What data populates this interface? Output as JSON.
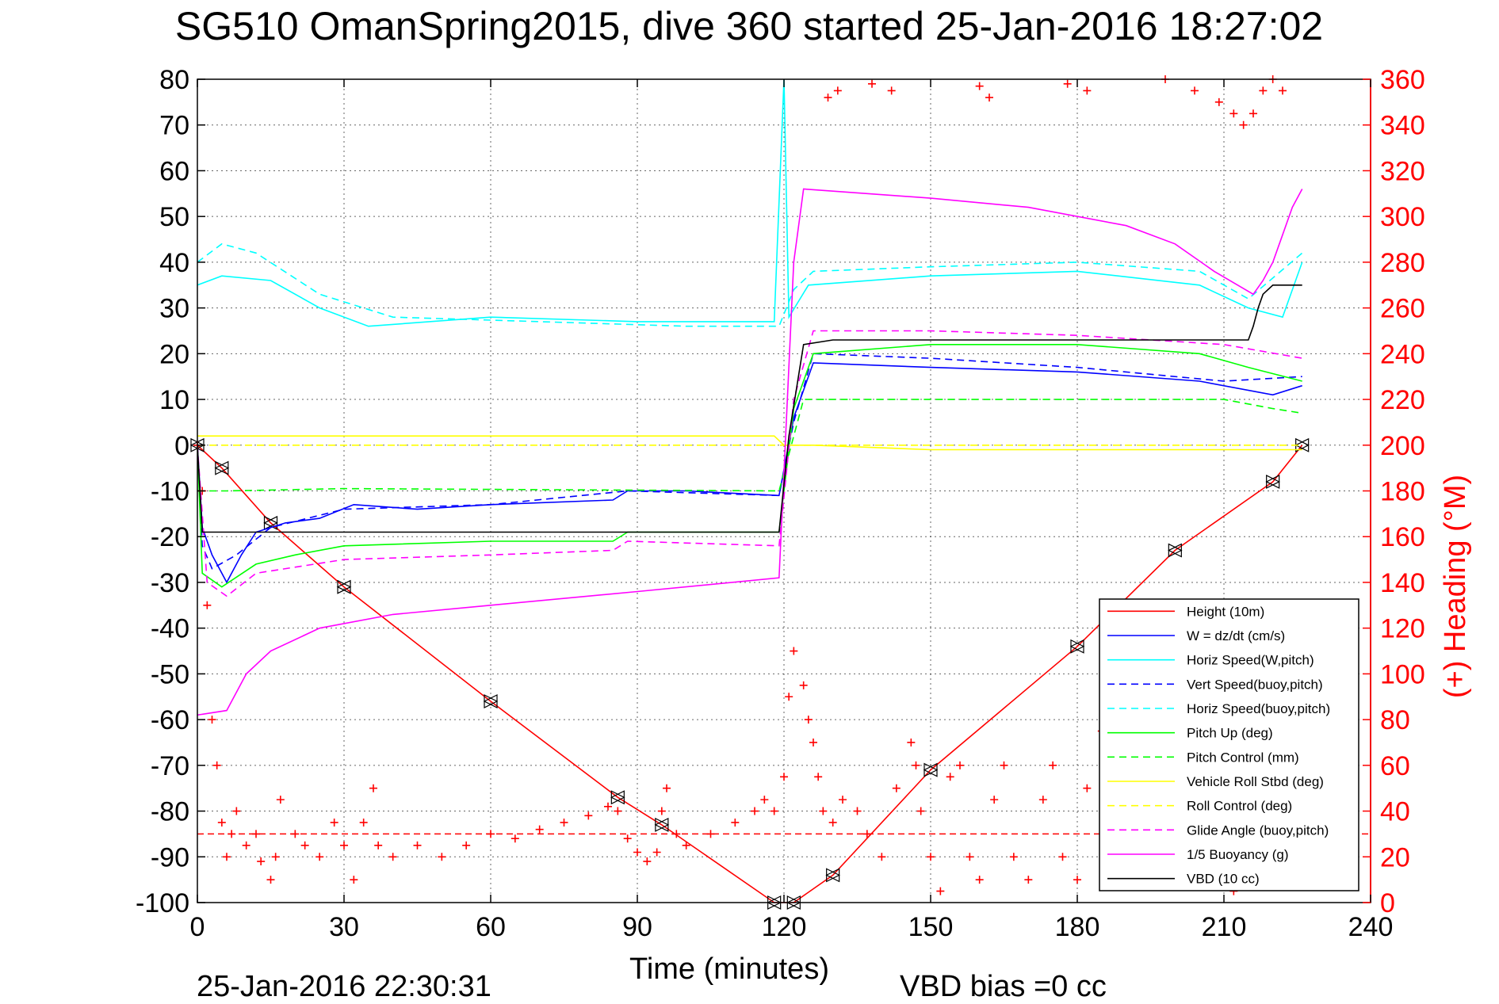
{
  "figure": {
    "title": "SG510 OmanSpring2015, dive 360 started 25-Jan-2016 18:27:02",
    "footer_timestamp": "25-Jan-2016 22:30:31",
    "footer_vbd": "VBD bias =0 cc"
  },
  "chart_data": {
    "type": "line",
    "title": "SG510 OmanSpring2015, dive 360 started 25-Jan-2016 18:27:02",
    "xlabel": "Time (minutes)",
    "ylabel": "",
    "y2label": "(+) Heading (°M)",
    "xlim": [
      0,
      240
    ],
    "ylim": [
      -100,
      80
    ],
    "y2lim": [
      0,
      360
    ],
    "xticks": [
      0,
      30,
      60,
      90,
      120,
      150,
      180,
      210,
      240
    ],
    "yticks": [
      -100,
      -90,
      -80,
      -70,
      -60,
      -50,
      -40,
      -30,
      -20,
      -10,
      0,
      10,
      20,
      30,
      40,
      50,
      60,
      70,
      80
    ],
    "y2ticks": [
      0,
      20,
      40,
      60,
      80,
      100,
      120,
      140,
      160,
      180,
      200,
      220,
      240,
      260,
      280,
      300,
      320,
      340,
      360
    ],
    "grid": true,
    "legend_position": "bottom-right",
    "colors": {
      "red": "#ff0000",
      "blue": "#0000ff",
      "cyan": "#00ffff",
      "green": "#00ff00",
      "yellow": "#ffff00",
      "magenta": "#ff00ff",
      "black": "#000000"
    },
    "series": [
      {
        "name": "Height (10m)",
        "color": "#ff0000",
        "style": "solid",
        "marker": "triangle",
        "points": [
          [
            0,
            0
          ],
          [
            5,
            -5
          ],
          [
            15,
            -17
          ],
          [
            30,
            -31
          ],
          [
            60,
            -56
          ],
          [
            86,
            -77
          ],
          [
            95,
            -83
          ],
          [
            118,
            -100
          ],
          [
            122,
            -100
          ],
          [
            130,
            -94
          ],
          [
            150,
            -71
          ],
          [
            180,
            -44
          ],
          [
            200,
            -23
          ],
          [
            220,
            -8
          ],
          [
            226,
            0
          ]
        ]
      },
      {
        "name": "W = dz/dt (cm/s)",
        "color": "#0000ff",
        "style": "solid",
        "points": [
          [
            0,
            0
          ],
          [
            1,
            -18
          ],
          [
            3,
            -24
          ],
          [
            6,
            -30
          ],
          [
            9,
            -24
          ],
          [
            12,
            -19
          ],
          [
            18,
            -17
          ],
          [
            25,
            -16
          ],
          [
            32,
            -13
          ],
          [
            45,
            -14
          ],
          [
            60,
            -13
          ],
          [
            85,
            -12
          ],
          [
            88,
            -10
          ],
          [
            100,
            -10
          ],
          [
            119,
            -11
          ],
          [
            122,
            6
          ],
          [
            126,
            18
          ],
          [
            150,
            17
          ],
          [
            180,
            16
          ],
          [
            205,
            14
          ],
          [
            220,
            11
          ],
          [
            226,
            13
          ]
        ]
      },
      {
        "name": "Horiz Speed(W,pitch)",
        "color": "#00ffff",
        "style": "solid",
        "points": [
          [
            0,
            35
          ],
          [
            5,
            37
          ],
          [
            15,
            36
          ],
          [
            25,
            30
          ],
          [
            35,
            26
          ],
          [
            60,
            28
          ],
          [
            90,
            27
          ],
          [
            118,
            27
          ],
          [
            120,
            80
          ],
          [
            121,
            28
          ],
          [
            125,
            35
          ],
          [
            150,
            37
          ],
          [
            180,
            38
          ],
          [
            205,
            35
          ],
          [
            215,
            30
          ],
          [
            222,
            28
          ],
          [
            226,
            40
          ]
        ]
      },
      {
        "name": "Vert Speed(buoy,pitch)",
        "color": "#0000ff",
        "style": "dashed",
        "points": [
          [
            0,
            0
          ],
          [
            1,
            -22
          ],
          [
            3,
            -27
          ],
          [
            8,
            -24
          ],
          [
            15,
            -18
          ],
          [
            30,
            -14
          ],
          [
            60,
            -13
          ],
          [
            88,
            -10
          ],
          [
            119,
            -11
          ],
          [
            122,
            5
          ],
          [
            126,
            20
          ],
          [
            150,
            19
          ],
          [
            180,
            17
          ],
          [
            210,
            14
          ],
          [
            226,
            15
          ]
        ]
      },
      {
        "name": "Horiz Speed(buoy,pitch)",
        "color": "#00ffff",
        "style": "dashed",
        "points": [
          [
            0,
            40
          ],
          [
            5,
            44
          ],
          [
            12,
            42
          ],
          [
            25,
            33
          ],
          [
            40,
            28
          ],
          [
            70,
            27
          ],
          [
            100,
            26
          ],
          [
            119,
            26
          ],
          [
            122,
            34
          ],
          [
            126,
            38
          ],
          [
            150,
            39
          ],
          [
            180,
            40
          ],
          [
            205,
            38
          ],
          [
            215,
            32
          ],
          [
            226,
            42
          ]
        ]
      },
      {
        "name": "Pitch Up (deg)",
        "color": "#00ff00",
        "style": "solid",
        "points": [
          [
            0,
            0
          ],
          [
            1,
            -28
          ],
          [
            5,
            -31
          ],
          [
            12,
            -26
          ],
          [
            20,
            -24
          ],
          [
            30,
            -22
          ],
          [
            60,
            -21
          ],
          [
            85,
            -21
          ],
          [
            88,
            -19
          ],
          [
            119,
            -19
          ],
          [
            122,
            8
          ],
          [
            126,
            20
          ],
          [
            150,
            22
          ],
          [
            180,
            22
          ],
          [
            205,
            20
          ],
          [
            215,
            17
          ],
          [
            226,
            14
          ]
        ]
      },
      {
        "name": "Pitch Control (mm)",
        "color": "#00ff00",
        "style": "dashed",
        "points": [
          [
            0,
            -10
          ],
          [
            6,
            -10
          ],
          [
            30,
            -9.5
          ],
          [
            119,
            -10
          ],
          [
            124,
            10
          ],
          [
            150,
            10
          ],
          [
            180,
            10
          ],
          [
            210,
            10
          ],
          [
            215,
            9
          ],
          [
            220,
            8
          ],
          [
            226,
            7
          ]
        ]
      },
      {
        "name": "Vehicle Roll Stbd (deg)",
        "color": "#ffff00",
        "style": "solid",
        "points": [
          [
            0,
            2
          ],
          [
            30,
            2
          ],
          [
            60,
            2
          ],
          [
            90,
            2
          ],
          [
            118,
            2
          ],
          [
            120,
            0
          ],
          [
            126,
            0
          ],
          [
            150,
            -1
          ],
          [
            180,
            -1
          ],
          [
            210,
            -1
          ],
          [
            226,
            -1
          ]
        ]
      },
      {
        "name": "Roll Control (deg)",
        "color": "#ffff00",
        "style": "dashed",
        "points": [
          [
            0,
            0
          ],
          [
            30,
            0
          ],
          [
            60,
            0
          ],
          [
            90,
            0
          ],
          [
            118,
            0
          ],
          [
            122,
            0
          ],
          [
            150,
            0
          ],
          [
            180,
            0
          ],
          [
            210,
            0
          ],
          [
            226,
            0
          ]
        ]
      },
      {
        "name": "Glide Angle (buoy,pitch)",
        "color": "#ff00ff",
        "style": "dashed",
        "points": [
          [
            0,
            0
          ],
          [
            2,
            -30
          ],
          [
            6,
            -33
          ],
          [
            12,
            -28
          ],
          [
            30,
            -25
          ],
          [
            60,
            -24
          ],
          [
            85,
            -23
          ],
          [
            88,
            -21
          ],
          [
            119,
            -22
          ],
          [
            122,
            10
          ],
          [
            126,
            25
          ],
          [
            150,
            25
          ],
          [
            180,
            24
          ],
          [
            210,
            22
          ],
          [
            226,
            19
          ]
        ]
      },
      {
        "name": "1/5 Buoyancy (g)",
        "color": "#ff00ff",
        "style": "solid",
        "points": [
          [
            0,
            -59
          ],
          [
            6,
            -58
          ],
          [
            10,
            -50
          ],
          [
            15,
            -45
          ],
          [
            25,
            -40
          ],
          [
            40,
            -37
          ],
          [
            60,
            -35
          ],
          [
            90,
            -32
          ],
          [
            119,
            -29
          ],
          [
            122,
            40
          ],
          [
            124,
            56
          ],
          [
            150,
            54
          ],
          [
            170,
            52
          ],
          [
            190,
            48
          ],
          [
            200,
            44
          ],
          [
            208,
            38
          ],
          [
            216,
            33
          ],
          [
            218,
            36
          ],
          [
            220,
            40
          ],
          [
            222,
            46
          ],
          [
            224,
            52
          ],
          [
            226,
            56
          ]
        ]
      },
      {
        "name": "VBD (10 cc)",
        "color": "#000000",
        "style": "solid",
        "points": [
          [
            0,
            0
          ],
          [
            1,
            -19
          ],
          [
            5,
            -19
          ],
          [
            119,
            -19
          ],
          [
            121,
            2
          ],
          [
            124,
            22
          ],
          [
            130,
            23
          ],
          [
            215,
            23
          ],
          [
            216,
            26
          ],
          [
            217,
            30
          ],
          [
            218,
            33
          ],
          [
            220,
            35
          ],
          [
            226,
            35
          ]
        ]
      }
    ],
    "heading": {
      "name": "Heading (°M)",
      "color": "#ff0000",
      "marker": "+",
      "axis": "right",
      "points": [
        [
          0,
          200
        ],
        [
          1,
          180
        ],
        [
          2,
          130
        ],
        [
          3,
          80
        ],
        [
          4,
          60
        ],
        [
          5,
          35
        ],
        [
          6,
          20
        ],
        [
          7,
          30
        ],
        [
          8,
          40
        ],
        [
          10,
          25
        ],
        [
          12,
          30
        ],
        [
          13,
          18
        ],
        [
          15,
          10
        ],
        [
          16,
          20
        ],
        [
          17,
          45
        ],
        [
          20,
          30
        ],
        [
          22,
          25
        ],
        [
          25,
          20
        ],
        [
          28,
          35
        ],
        [
          30,
          25
        ],
        [
          32,
          10
        ],
        [
          34,
          35
        ],
        [
          36,
          50
        ],
        [
          37,
          25
        ],
        [
          40,
          20
        ],
        [
          45,
          25
        ],
        [
          50,
          20
        ],
        [
          55,
          25
        ],
        [
          60,
          30
        ],
        [
          65,
          28
        ],
        [
          70,
          32
        ],
        [
          75,
          35
        ],
        [
          80,
          38
        ],
        [
          84,
          42
        ],
        [
          86,
          40
        ],
        [
          88,
          28
        ],
        [
          90,
          22
        ],
        [
          92,
          18
        ],
        [
          94,
          22
        ],
        [
          95,
          40
        ],
        [
          96,
          50
        ],
        [
          98,
          30
        ],
        [
          100,
          25
        ],
        [
          105,
          30
        ],
        [
          110,
          35
        ],
        [
          114,
          40
        ],
        [
          116,
          45
        ],
        [
          118,
          40
        ],
        [
          120,
          55
        ],
        [
          121,
          90
        ],
        [
          122,
          110
        ],
        [
          124,
          95
        ],
        [
          125,
          80
        ],
        [
          126,
          70
        ],
        [
          127,
          55
        ],
        [
          128,
          40
        ],
        [
          130,
          35
        ],
        [
          132,
          45
        ],
        [
          135,
          40
        ],
        [
          137,
          30
        ],
        [
          140,
          20
        ],
        [
          143,
          50
        ],
        [
          146,
          70
        ],
        [
          147,
          60
        ],
        [
          148,
          40
        ],
        [
          150,
          20
        ],
        [
          152,
          5
        ],
        [
          154,
          55
        ],
        [
          156,
          60
        ],
        [
          158,
          20
        ],
        [
          160,
          10
        ],
        [
          163,
          45
        ],
        [
          165,
          60
        ],
        [
          167,
          20
        ],
        [
          170,
          10
        ],
        [
          173,
          45
        ],
        [
          175,
          60
        ],
        [
          177,
          20
        ],
        [
          180,
          10
        ],
        [
          182,
          50
        ],
        [
          185,
          75
        ],
        [
          187,
          30
        ],
        [
          190,
          10
        ],
        [
          193,
          40
        ],
        [
          195,
          65
        ],
        [
          197,
          20
        ],
        [
          200,
          10
        ],
        [
          204,
          45
        ],
        [
          207,
          65
        ],
        [
          209,
          20
        ],
        [
          212,
          5
        ],
        [
          214,
          40
        ],
        [
          216,
          60
        ],
        [
          218,
          30
        ],
        [
          220,
          10
        ],
        [
          222,
          40
        ],
        [
          224,
          55
        ],
        [
          226,
          50
        ],
        [
          198,
          360
        ],
        [
          204,
          355
        ],
        [
          209,
          350
        ],
        [
          212,
          345
        ],
        [
          214,
          340
        ],
        [
          216,
          345
        ],
        [
          218,
          355
        ],
        [
          220,
          360
        ],
        [
          222,
          355
        ],
        [
          178,
          358
        ],
        [
          182,
          355
        ],
        [
          160,
          357
        ],
        [
          162,
          352
        ],
        [
          138,
          358
        ],
        [
          142,
          355
        ],
        [
          131,
          355
        ],
        [
          129,
          352
        ]
      ]
    },
    "reference_line": {
      "value": -85,
      "color": "#ff0000",
      "style": "dashed"
    }
  }
}
